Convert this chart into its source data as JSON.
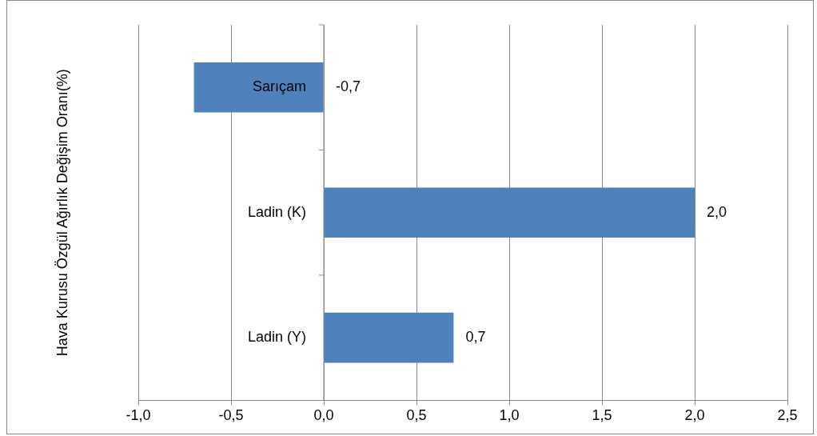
{
  "chart_data": {
    "type": "bar",
    "orientation": "horizontal",
    "ylabel": "Hava Kurusu Özgül Ağırlık Değişim Oranı(%)",
    "categories": [
      "Sarıçam",
      "Ladin (K)",
      "Ladin (Y)"
    ],
    "values": [
      -0.7,
      2.0,
      0.7
    ],
    "color": "#4f81bd",
    "value_labels": [
      "-0,7",
      "2,0",
      "0,7"
    ],
    "xlim": [
      -1,
      2.5
    ],
    "xticks": [
      {
        "value": -1,
        "label": "-1,0"
      },
      {
        "value": -0.5,
        "label": "-0,5"
      },
      {
        "value": 0,
        "label": "0,0"
      },
      {
        "value": 0.5,
        "label": "0,5"
      },
      {
        "value": 1,
        "label": "1,0"
      },
      {
        "value": 1.5,
        "label": "1,5"
      },
      {
        "value": 2,
        "label": "2,0"
      },
      {
        "value": 2.5,
        "label": "2,5"
      }
    ],
    "grid": "x"
  }
}
